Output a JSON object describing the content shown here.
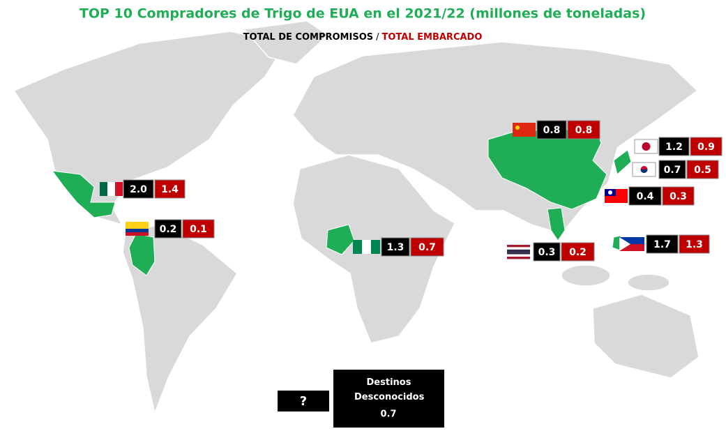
{
  "header": {
    "title": "TOP 10 Compradores de Trigo de EUA en el 2021/22 (millones de toneladas)",
    "subtitle": {
      "committed": "TOTAL DE COMPROMISOS",
      "separator": "/",
      "shipped": "TOTAL EMBARCADO"
    }
  },
  "buyers": [
    {
      "committed": "2.0",
      "shipped": "1.4"
    },
    {
      "committed": "0.2",
      "shipped": "0.1"
    },
    {
      "committed": "1.3",
      "shipped": "0.7"
    },
    {
      "committed": "0.8",
      "shipped": "0.8"
    },
    {
      "committed": "1.2",
      "shipped": "0.9"
    },
    {
      "committed": "0.7",
      "shipped": "0.5"
    },
    {
      "committed": "0.4",
      "shipped": "0.3"
    },
    {
      "committed": "0.3",
      "shipped": "0.2"
    },
    {
      "committed": "1.7",
      "shipped": "1.3"
    }
  ],
  "unknown": {
    "icon": "?",
    "label": "Destinos Desconocidos",
    "value": "0.7"
  }
}
